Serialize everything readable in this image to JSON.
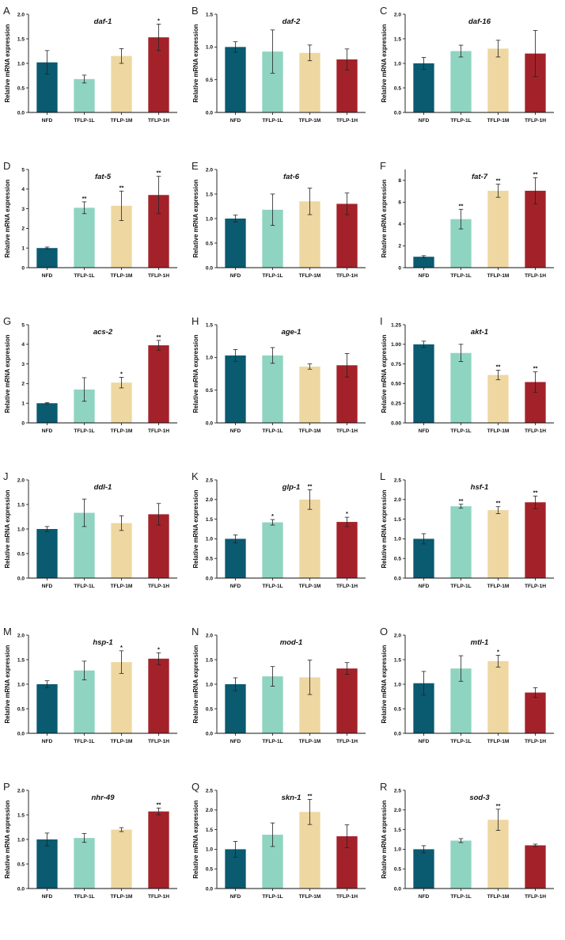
{
  "colors": [
    "#0a5a70",
    "#8fd4c1",
    "#eed7a1",
    "#a3222a"
  ],
  "chart_data": [
    {
      "type": "bar",
      "panel": "A",
      "title": "daf-1",
      "ylabel": "Relative mRNA expression",
      "categories": [
        "NFD",
        "TFLP-1L",
        "TFLP-1M",
        "TFLP-1H"
      ],
      "ylim": [
        0,
        2.0
      ],
      "yticks": [
        "0.0",
        "0.5",
        "1.0",
        "1.5",
        "2.0"
      ],
      "values": [
        1.02,
        0.68,
        1.15,
        1.53
      ],
      "errors": [
        0.24,
        0.08,
        0.15,
        0.27
      ],
      "significance": [
        "",
        "",
        "",
        "*"
      ]
    },
    {
      "type": "bar",
      "panel": "B",
      "title": "daf-2",
      "ylabel": "Relative mRNA expression",
      "categories": [
        "NFD",
        "TFLP-1L",
        "TFLP-1M",
        "TFLP-1H"
      ],
      "ylim": [
        0,
        1.5
      ],
      "yticks": [
        "0.0",
        "0.5",
        "1.0",
        "1.5"
      ],
      "values": [
        1.0,
        0.93,
        0.91,
        0.81
      ],
      "errors": [
        0.08,
        0.33,
        0.12,
        0.16
      ],
      "significance": [
        "",
        "",
        "",
        ""
      ]
    },
    {
      "type": "bar",
      "panel": "C",
      "title": "daf-16",
      "ylabel": "Relative mRNA expression",
      "categories": [
        "NFD",
        "TFLP-1L",
        "TFLP-1M",
        "TFLP-1H"
      ],
      "ylim": [
        0,
        2.0
      ],
      "yticks": [
        "0.0",
        "0.5",
        "1.0",
        "1.5",
        "2.0"
      ],
      "values": [
        1.0,
        1.25,
        1.3,
        1.2
      ],
      "errors": [
        0.12,
        0.12,
        0.17,
        0.47
      ],
      "significance": [
        "",
        "",
        "",
        ""
      ]
    },
    {
      "type": "bar",
      "panel": "D",
      "title": "fat-5",
      "ylabel": "Relative mRNA expression",
      "categories": [
        "NFD",
        "TFLP-1L",
        "TFLP-1M",
        "TFLP-1H"
      ],
      "ylim": [
        0,
        5
      ],
      "yticks": [
        "0",
        "1",
        "2",
        "3",
        "4",
        "5"
      ],
      "values": [
        1.0,
        3.05,
        3.15,
        3.7
      ],
      "errors": [
        0.05,
        0.3,
        0.75,
        0.95
      ],
      "significance": [
        "",
        "**",
        "**",
        "**"
      ]
    },
    {
      "type": "bar",
      "panel": "E",
      "title": "fat-6",
      "ylabel": "Relative mRNA expression",
      "categories": [
        "NFD",
        "TFLP-1L",
        "TFLP-1M",
        "TFLP-1H"
      ],
      "ylim": [
        0,
        2.0
      ],
      "yticks": [
        "0.0",
        "0.5",
        "1.0",
        "1.5",
        "2.0"
      ],
      "values": [
        1.0,
        1.18,
        1.35,
        1.3
      ],
      "errors": [
        0.07,
        0.32,
        0.27,
        0.22
      ],
      "significance": [
        "",
        "",
        "",
        ""
      ]
    },
    {
      "type": "bar",
      "panel": "F",
      "title": "fat-7",
      "ylabel": "Relative mRNA expression",
      "categories": [
        "NFD",
        "TFLP-1L",
        "TFLP-1M",
        "TFLP-1H"
      ],
      "ylim": [
        0,
        9
      ],
      "yticks": [
        "0",
        "2",
        "4",
        "6",
        "8"
      ],
      "values": [
        1.0,
        4.45,
        7.05,
        7.05
      ],
      "errors": [
        0.1,
        0.9,
        0.6,
        1.2
      ],
      "significance": [
        "",
        "**",
        "**",
        "**"
      ]
    },
    {
      "type": "bar",
      "panel": "G",
      "title": "acs-2",
      "ylabel": "Relative mRNA expression",
      "categories": [
        "NFD",
        "TFLP-1L",
        "TFLP-1M",
        "TFLP-1H"
      ],
      "ylim": [
        0,
        5
      ],
      "yticks": [
        "0",
        "1",
        "2",
        "3",
        "4",
        "5"
      ],
      "values": [
        1.0,
        1.7,
        2.05,
        3.95
      ],
      "errors": [
        0.03,
        0.6,
        0.27,
        0.25
      ],
      "significance": [
        "",
        "",
        "*",
        "**"
      ]
    },
    {
      "type": "bar",
      "panel": "H",
      "title": "age-1",
      "ylabel": "Relative mRNA expression",
      "categories": [
        "NFD",
        "TFLP-1L",
        "TFLP-1M",
        "TFLP-1H"
      ],
      "ylim": [
        0,
        1.5
      ],
      "yticks": [
        "0.0",
        "0.5",
        "1.0",
        "1.5"
      ],
      "values": [
        1.03,
        1.03,
        0.86,
        0.88
      ],
      "errors": [
        0.09,
        0.12,
        0.04,
        0.18
      ],
      "significance": [
        "",
        "",
        "",
        ""
      ]
    },
    {
      "type": "bar",
      "panel": "I",
      "title": "akt-1",
      "ylabel": "Relative mRNA expression",
      "categories": [
        "NFD",
        "TFLP-1L",
        "TFLP-1M",
        "TFLP-1H"
      ],
      "ylim": [
        0,
        1.25
      ],
      "yticks": [
        "0.00",
        "0.25",
        "0.50",
        "0.75",
        "1.00",
        "1.25"
      ],
      "values": [
        1.0,
        0.89,
        0.61,
        0.52
      ],
      "errors": [
        0.04,
        0.11,
        0.06,
        0.13
      ],
      "significance": [
        "",
        "",
        "**",
        "**"
      ]
    },
    {
      "type": "bar",
      "panel": "J",
      "title": "ddl-1",
      "ylabel": "Relative mRNA expression",
      "categories": [
        "NFD",
        "TFLP-1L",
        "TFLP-1M",
        "TFLP-1H"
      ],
      "ylim": [
        0,
        2.0
      ],
      "yticks": [
        "0.0",
        "0.5",
        "1.0",
        "1.5",
        "2.0"
      ],
      "values": [
        1.0,
        1.33,
        1.12,
        1.3
      ],
      "errors": [
        0.05,
        0.28,
        0.15,
        0.22
      ],
      "significance": [
        "",
        "",
        "",
        ""
      ]
    },
    {
      "type": "bar",
      "panel": "K",
      "title": "glp-1",
      "ylabel": "Relative mRNA expression",
      "categories": [
        "NFD",
        "TFLP-1L",
        "TFLP-1M",
        "TFLP-1H"
      ],
      "ylim": [
        0,
        2.5
      ],
      "yticks": [
        "0.0",
        "0.5",
        "1.0",
        "1.5",
        "2.0",
        "2.5"
      ],
      "values": [
        1.0,
        1.42,
        2.0,
        1.43
      ],
      "errors": [
        0.1,
        0.07,
        0.25,
        0.12
      ],
      "significance": [
        "",
        "*",
        "**",
        "*"
      ]
    },
    {
      "type": "bar",
      "panel": "L",
      "title": "hsf-1",
      "ylabel": "Relative mRNA expression",
      "categories": [
        "NFD",
        "TFLP-1L",
        "TFLP-1M",
        "TFLP-1H"
      ],
      "ylim": [
        0,
        2.5
      ],
      "yticks": [
        "0.0",
        "0.5",
        "1.0",
        "1.5",
        "2.0",
        "2.5"
      ],
      "values": [
        1.0,
        1.83,
        1.73,
        1.93
      ],
      "errors": [
        0.13,
        0.05,
        0.09,
        0.16
      ],
      "significance": [
        "",
        "**",
        "**",
        "**"
      ]
    },
    {
      "type": "bar",
      "panel": "M",
      "title": "hsp-1",
      "ylabel": "Relative mRNA expression",
      "categories": [
        "NFD",
        "TFLP-1L",
        "TFLP-1M",
        "TFLP-1H"
      ],
      "ylim": [
        0,
        2.0
      ],
      "yticks": [
        "0.0",
        "0.5",
        "1.0",
        "1.5",
        "2.0"
      ],
      "values": [
        1.0,
        1.28,
        1.45,
        1.52
      ],
      "errors": [
        0.07,
        0.19,
        0.23,
        0.12
      ],
      "significance": [
        "",
        "",
        "*",
        "*"
      ]
    },
    {
      "type": "bar",
      "panel": "N",
      "title": "mod-1",
      "ylabel": "Relative mRNA expression",
      "categories": [
        "NFD",
        "TFLP-1L",
        "TFLP-1M",
        "TFLP-1H"
      ],
      "ylim": [
        0,
        2.0
      ],
      "yticks": [
        "0.0",
        "0.5",
        "1.0",
        "1.5",
        "2.0"
      ],
      "values": [
        1.0,
        1.16,
        1.14,
        1.32
      ],
      "errors": [
        0.13,
        0.2,
        0.35,
        0.12
      ],
      "significance": [
        "",
        "",
        "",
        ""
      ]
    },
    {
      "type": "bar",
      "panel": "O",
      "title": "mtl-1",
      "ylabel": "Relative mRNA expression",
      "categories": [
        "NFD",
        "TFLP-1L",
        "TFLP-1M",
        "TFLP-1H"
      ],
      "ylim": [
        0,
        2.0
      ],
      "yticks": [
        "0.0",
        "0.5",
        "1.0",
        "1.5",
        "2.0"
      ],
      "values": [
        1.02,
        1.32,
        1.47,
        0.83
      ],
      "errors": [
        0.24,
        0.26,
        0.12,
        0.1
      ],
      "significance": [
        "",
        "",
        "*",
        ""
      ]
    },
    {
      "type": "bar",
      "panel": "P",
      "title": "nhr-49",
      "ylabel": "Relative mRNA expression",
      "categories": [
        "NFD",
        "TFLP-1L",
        "TFLP-1M",
        "TFLP-1H"
      ],
      "ylim": [
        0,
        2.0
      ],
      "yticks": [
        "0.0",
        "0.5",
        "1.0",
        "1.5",
        "2.0"
      ],
      "values": [
        1.0,
        1.03,
        1.2,
        1.57
      ],
      "errors": [
        0.13,
        0.09,
        0.04,
        0.07
      ],
      "significance": [
        "",
        "",
        "",
        "**"
      ]
    },
    {
      "type": "bar",
      "panel": "Q",
      "title": "skn-1",
      "ylabel": "Relative mRNA expression",
      "categories": [
        "NFD",
        "TFLP-1L",
        "TFLP-1M",
        "TFLP-1H"
      ],
      "ylim": [
        0,
        2.5
      ],
      "yticks": [
        "0.0",
        "0.5",
        "1.0",
        "1.5",
        "2.0",
        "2.5"
      ],
      "values": [
        1.0,
        1.37,
        1.95,
        1.33
      ],
      "errors": [
        0.2,
        0.3,
        0.32,
        0.29
      ],
      "significance": [
        "",
        "",
        "**",
        ""
      ]
    },
    {
      "type": "bar",
      "panel": "R",
      "title": "sod-3",
      "ylabel": "Relative mRNA expression",
      "categories": [
        "NFD",
        "TFLP-1L",
        "TFLP-1M",
        "TFLP-1H"
      ],
      "ylim": [
        0,
        2.5
      ],
      "yticks": [
        "0.0",
        "0.5",
        "1.0",
        "1.5",
        "2.0",
        "2.5"
      ],
      "values": [
        1.0,
        1.22,
        1.75,
        1.1
      ],
      "errors": [
        0.09,
        0.05,
        0.27,
        0.03
      ],
      "significance": [
        "",
        "",
        "**",
        ""
      ]
    }
  ]
}
